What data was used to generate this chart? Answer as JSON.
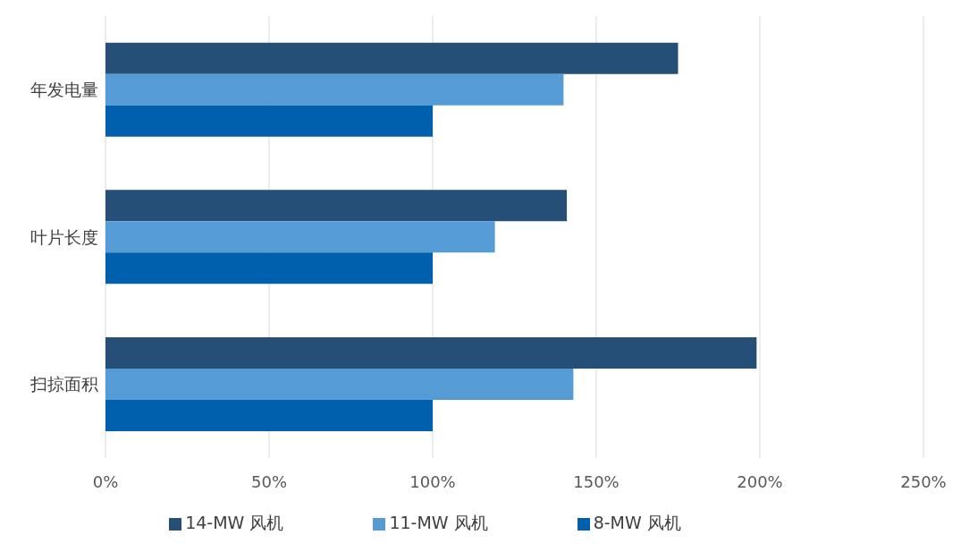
{
  "chart_data": {
    "type": "bar",
    "orientation": "horizontal",
    "categories": [
      "年发电量",
      "叶片长度",
      "扫掠面积"
    ],
    "series": [
      {
        "name": "14-MW 风机",
        "color": "#264f78",
        "values": [
          175,
          141,
          199
        ]
      },
      {
        "name": "11-MW 风机",
        "color": "#559bd6",
        "values": [
          140,
          119,
          143
        ]
      },
      {
        "name": "8-MW 风机",
        "color": "#0060ad",
        "values": [
          100,
          100,
          100
        ]
      }
    ],
    "xlim": [
      0,
      250
    ],
    "xticks": [
      {
        "value": 0,
        "label": "0%"
      },
      {
        "value": 50,
        "label": "50%"
      },
      {
        "value": 100,
        "label": "100%"
      },
      {
        "value": 150,
        "label": "150%"
      },
      {
        "value": 200,
        "label": "200%"
      },
      {
        "value": 250,
        "label": "250%"
      }
    ],
    "grid": "x",
    "legend": "bottom"
  }
}
